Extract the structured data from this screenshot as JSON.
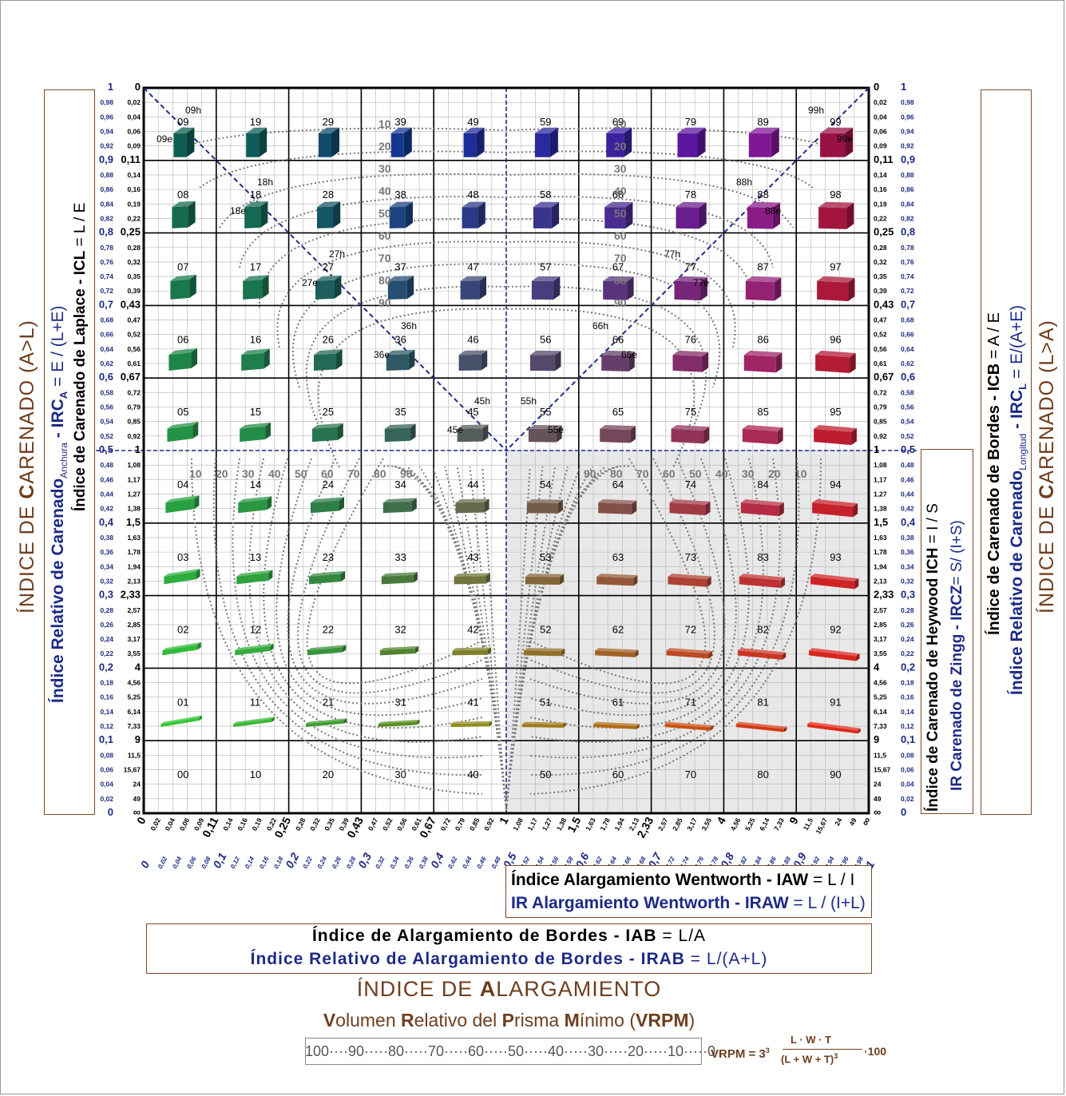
{
  "left_axis": {
    "outer_title_a": "ÍNDICE DE ",
    "outer_title_b": "C",
    "outer_title_c": "ARENADO (A>L)",
    "irc_a_title": "Índice Relativo de Carenado",
    "irc_a_sub": "Anchura",
    "irc_a_code": " - IRC",
    "irc_a_code_sub": "A",
    "irc_a_formula": " = E / (L+E)",
    "icl_title": "Índice de Carenado de Laplace - ICL",
    "icl_formula": " = L / E",
    "navy_ticks": [
      "1",
      "0,98",
      "0,96",
      "0,94",
      "0,92",
      "0,9",
      "0,88",
      "0,86",
      "0,84",
      "0,82",
      "0,8",
      "0,78",
      "0,76",
      "0,74",
      "0,72",
      "0,7",
      "0,68",
      "0,66",
      "0,64",
      "0,62",
      "0,6",
      "0,58",
      "0,56",
      "0,54",
      "0,52",
      "0,5",
      "0,48",
      "0,46",
      "0,44",
      "0,42",
      "0,4",
      "0,38",
      "0,36",
      "0,34",
      "0,32",
      "0,3",
      "0,28",
      "0,26",
      "0,24",
      "0,22",
      "0,2",
      "0,18",
      "0,16",
      "0,14",
      "0,12",
      "0,1",
      "0,08",
      "0,06",
      "0,04",
      "0,02",
      "0"
    ],
    "black_ticks": [
      "0",
      "0,02",
      "0,04",
      "0,06",
      "0,09",
      "0,11",
      "0,14",
      "0,16",
      "0,19",
      "0,22",
      "0,25",
      "0,28",
      "0,32",
      "0,35",
      "0,39",
      "0,43",
      "0,47",
      "0,52",
      "0,56",
      "0,61",
      "0,67",
      "0,72",
      "0,79",
      "0,85",
      "0,92",
      "1",
      "1,08",
      "1,17",
      "1,27",
      "1,38",
      "1,5",
      "1,63",
      "1,78",
      "1,94",
      "2,13",
      "2,33",
      "2,57",
      "2,85",
      "3,17",
      "3,55",
      "4",
      "4,56",
      "5,25",
      "6,14",
      "7,33",
      "9",
      "11,5",
      "15,67",
      "24",
      "49",
      "∞"
    ]
  },
  "right_axis": {
    "black_ticks": [
      "0",
      "0,02",
      "0,04",
      "0,06",
      "0,09",
      "0,11",
      "0,14",
      "0,16",
      "0,19",
      "0,22",
      "0,25",
      "0,28",
      "0,32",
      "0,35",
      "0,39",
      "0,43",
      "0,47",
      "0,52",
      "0,56",
      "0,61",
      "0,67",
      "0,72",
      "0,79",
      "0,85",
      "0,92",
      "1",
      "1,08",
      "1,17",
      "1,27",
      "1,38",
      "1,5",
      "1,63",
      "1,78",
      "1,94",
      "2,13",
      "2,33",
      "2,57",
      "2,85",
      "3,17",
      "3,55",
      "4",
      "4,56",
      "5,25",
      "6,14",
      "7,33",
      "9",
      "11,5",
      "15,67",
      "24",
      "49",
      "∞"
    ],
    "navy_ticks": [
      "1",
      "0,98",
      "0,96",
      "0,94",
      "0,92",
      "0,9",
      "0,88",
      "0,86",
      "0,84",
      "0,82",
      "0,8",
      "0,78",
      "0,76",
      "0,74",
      "0,72",
      "0,7",
      "0,68",
      "0,66",
      "0,64",
      "0,62",
      "0,6",
      "0,58",
      "0,56",
      "0,54",
      "0,52",
      "0,5",
      "0,48",
      "0,46",
      "0,44",
      "0,42",
      "0,4",
      "0,38",
      "0,36",
      "0,34",
      "0,32",
      "0,3",
      "0,28",
      "0,26",
      "0,24",
      "0,22",
      "0,2",
      "0,18",
      "0,16",
      "0,14",
      "0,12",
      "0,1",
      "0,08",
      "0,06",
      "0,04",
      "0,02",
      "0"
    ],
    "ich_title": "Índice de Carenado de Heywood ICH",
    "ich_formula": " = I / S",
    "ircz_title": "IR Carenado de Zingg - IRCZ",
    "ircz_formula": "= S/ (I+S)",
    "icb_title": "Índice de Carenado de Bordes - ICB",
    "icb_formula": " = A / E",
    "irc_l_title": "Índice Relativo de Carenado",
    "irc_l_sub": "Longitud",
    "irc_l_code": " - IRC",
    "irc_l_code_sub": "L",
    "irc_l_formula": " = E/(A+E)",
    "outer_title_a": "ÍNDICE DE ",
    "outer_title_b": "C",
    "outer_title_c": "ARENADO (L>A)"
  },
  "bottom_axis": {
    "black_ticks": [
      "0",
      "0,02",
      "0,04",
      "0,06",
      "0,09",
      "0,11",
      "0,14",
      "0,16",
      "0,19",
      "0,22",
      "0,25",
      "0,28",
      "0,32",
      "0,35",
      "0,39",
      "0,43",
      "0,47",
      "0,52",
      "0,56",
      "0,61",
      "0,67",
      "0,72",
      "0,79",
      "0,85",
      "0,92",
      "1",
      "1,08",
      "1,17",
      "1,27",
      "1,38",
      "1,5",
      "1,63",
      "1,78",
      "1,94",
      "2,13",
      "2,33",
      "2,57",
      "2,85",
      "3,17",
      "3,55",
      "4",
      "4,56",
      "5,25",
      "6,14",
      "7,33",
      "9",
      "11,5",
      "15,67",
      "24",
      "49",
      "∞"
    ],
    "navy_ticks": [
      "0",
      "0,02",
      "0,04",
      "0,06",
      "0,08",
      "0,1",
      "0,12",
      "0,14",
      "0,16",
      "0,18",
      "0,2",
      "0,22",
      "0,24",
      "0,26",
      "0,28",
      "0,3",
      "0,32",
      "0,34",
      "0,36",
      "0,38",
      "0,4",
      "0,42",
      "0,44",
      "0,46",
      "0,48",
      "0,5",
      "0,52",
      "0,54",
      "0,56",
      "0,58",
      "0,6",
      "0,62",
      "0,64",
      "0,66",
      "0,68",
      "0,7",
      "0,72",
      "0,74",
      "0,76",
      "0,78",
      "0,8",
      "0,82",
      "0,84",
      "0,86",
      "0,88",
      "0,9",
      "0,92",
      "0,94",
      "0,96",
      "0,98",
      "1"
    ]
  },
  "grid": {
    "rows": [
      [
        "09",
        "19",
        "29",
        "39",
        "49",
        "59",
        "69",
        "79",
        "89",
        "99"
      ],
      [
        "08",
        "18",
        "28",
        "38",
        "48",
        "58",
        "68",
        "78",
        "88",
        "98"
      ],
      [
        "07",
        "17",
        "27",
        "37",
        "47",
        "57",
        "67",
        "77",
        "87",
        "97"
      ],
      [
        "06",
        "16",
        "26",
        "36",
        "46",
        "56",
        "66",
        "76",
        "86",
        "96"
      ],
      [
        "05",
        "15",
        "25",
        "35",
        "45",
        "55",
        "65",
        "75",
        "85",
        "95"
      ],
      [
        "04",
        "14",
        "24",
        "34",
        "44",
        "54",
        "64",
        "74",
        "84",
        "94"
      ],
      [
        "03",
        "13",
        "23",
        "33",
        "43",
        "53",
        "63",
        "73",
        "83",
        "93"
      ],
      [
        "02",
        "12",
        "22",
        "32",
        "42",
        "52",
        "62",
        "72",
        "82",
        "92"
      ],
      [
        "01",
        "11",
        "21",
        "31",
        "41",
        "51",
        "61",
        "71",
        "81",
        "91"
      ],
      [
        "00",
        "10",
        "20",
        "30",
        "40",
        "50",
        "60",
        "70",
        "80",
        "90"
      ]
    ],
    "diag_labels": [
      "09h",
      "09e",
      "18h",
      "18e",
      "27h",
      "27e",
      "36h",
      "36e",
      "45h",
      "45e",
      "55h",
      "55e",
      "66h",
      "66e",
      "77h",
      "77e",
      "88h",
      "88e",
      "99h",
      "99e"
    ],
    "contour_labels_top": [
      "10",
      "20",
      "30",
      "40",
      "50",
      "60",
      "70",
      "80",
      "90"
    ],
    "contour_labels_mid": [
      "10",
      "20",
      "30",
      "40",
      "50",
      "60",
      "70",
      "80",
      "90"
    ],
    "contour_labels_low": [
      "90",
      "80",
      "70",
      "60",
      "50",
      "40",
      "30",
      "20",
      "10"
    ]
  },
  "wentworth": {
    "iaw_title": "Índice Alargamiento Wentworth - IAW",
    "iaw_formula": " = L / I",
    "iraw_title": "IR Alargamiento Wentworth - IRAW",
    "iraw_formula": " = L / (I+L)"
  },
  "bordes": {
    "iab_title": "Índice de Alargamiento de Bordes - IAB",
    "iab_formula": " = L/A",
    "irab_title": "Índice Relativo de Alargamiento de Bordes - IRAB",
    "irab_formula": " = L/(A+L)"
  },
  "bottom_titles": {
    "alarg_a": "ÍNDICE DE ",
    "alarg_b": "A",
    "alarg_c": "LARGAMIENTO",
    "vrpm_1": "V",
    "vrpm_2": "olumen ",
    "vrpm_3": "R",
    "vrpm_4": "elativo del ",
    "vrpm_5": "P",
    "vrpm_6": "risma ",
    "vrpm_7": "M",
    "vrpm_8": "ínimo (",
    "vrpm_9": "VRPM",
    "vrpm_10": ")",
    "scale": "100····90·····80·····70·····60·····50·····40·····30·····20·····10·····0",
    "formula_lhs": "VRPM = 3",
    "formula_exp": "3",
    "formula_num": "L · W · T",
    "formula_den": "(L + W + T)",
    "formula_den_exp": "3",
    "formula_tail": "·100"
  },
  "colors": {
    "brown": "#6e3e1e",
    "navy": "#1d2a86",
    "shade": "#e8e8e8",
    "contour": "#777777"
  }
}
